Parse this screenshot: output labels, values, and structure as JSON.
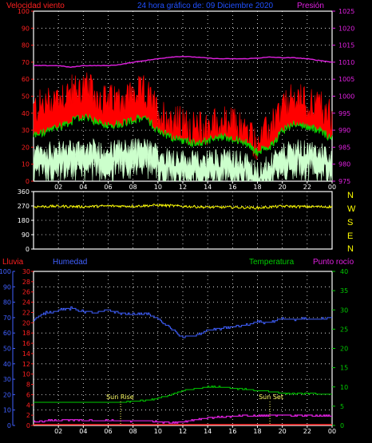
{
  "header": {
    "wind_label": "Velocidad viento",
    "title": "24 hora gráfico de: 09 Diciembre 2020",
    "pressure_label": "Presión"
  },
  "colors": {
    "background": "#000000",
    "grid": "#ffffff",
    "wind_avg": "#00dd00",
    "wind_gust": "#ff0000",
    "wind_min": "#ccffcc",
    "pressure": "#e020e0",
    "direction": "#ffff00",
    "rain": "#ff2020",
    "humidity": "#4060ff",
    "temperature": "#00cc00",
    "dewpoint": "#e020e0",
    "sun": "#ffff66"
  },
  "direction_labels": [
    "N",
    "W",
    "S",
    "E",
    "N"
  ],
  "lower_labels": {
    "rain": "Lluvia",
    "humidity": "Humedad",
    "temperature": "Temperatura",
    "dewpoint": "Punto rocío"
  },
  "sun_labels": {
    "rise": "Sun Rise",
    "set": "Sun Set"
  },
  "x_ticks": [
    "02",
    "04",
    "06",
    "08",
    "10",
    "12",
    "14",
    "16",
    "18",
    "20",
    "22",
    "00"
  ],
  "chart_data": [
    {
      "type": "line",
      "title": "24 hora gráfico de: 09 Diciembre 2020",
      "x_unit": "hours",
      "x_range": [
        0,
        24
      ],
      "y_left": {
        "label": "Velocidad viento",
        "range": [
          0,
          100
        ],
        "ticks": [
          0,
          10,
          20,
          30,
          40,
          50,
          60,
          70,
          80,
          90,
          100
        ]
      },
      "y_right": {
        "label": "Presión",
        "range": [
          975,
          1025
        ],
        "ticks": [
          975,
          980,
          985,
          990,
          995,
          1000,
          1005,
          1010,
          1015,
          1020,
          1025
        ]
      },
      "series": [
        {
          "key": "gust",
          "axis": "left",
          "x": [
            0,
            1,
            2,
            3,
            4,
            5,
            6,
            7,
            8,
            9,
            10,
            11,
            12,
            13,
            14,
            15,
            16,
            17,
            18,
            19,
            20,
            21,
            22,
            23,
            24
          ],
          "values": [
            42,
            45,
            50,
            52,
            55,
            50,
            46,
            48,
            50,
            52,
            40,
            36,
            33,
            30,
            32,
            34,
            33,
            30,
            22,
            30,
            42,
            48,
            46,
            44,
            38
          ]
        },
        {
          "key": "avg",
          "axis": "left",
          "x": [
            0,
            1,
            2,
            3,
            4,
            5,
            6,
            7,
            8,
            9,
            10,
            11,
            12,
            13,
            14,
            15,
            16,
            17,
            18,
            19,
            20,
            21,
            22,
            23,
            24
          ],
          "values": [
            27,
            29,
            32,
            35,
            38,
            35,
            33,
            34,
            36,
            37,
            30,
            26,
            24,
            22,
            24,
            26,
            25,
            23,
            17,
            20,
            30,
            34,
            32,
            30,
            25
          ]
        },
        {
          "key": "min",
          "axis": "left",
          "x": [
            0,
            1,
            2,
            3,
            4,
            5,
            6,
            7,
            8,
            9,
            10,
            11,
            12,
            13,
            14,
            15,
            16,
            17,
            18,
            19,
            20,
            21,
            22,
            23,
            24
          ],
          "values": [
            16,
            17,
            18,
            19,
            20,
            19,
            18,
            19,
            20,
            20,
            16,
            14,
            13,
            12,
            13,
            14,
            13,
            12,
            6,
            10,
            16,
            19,
            18,
            17,
            15
          ]
        },
        {
          "key": "pressure",
          "axis": "right",
          "x": [
            0,
            1,
            2,
            3,
            4,
            5,
            6,
            7,
            8,
            9,
            10,
            11,
            12,
            13,
            14,
            15,
            16,
            17,
            18,
            19,
            20,
            21,
            22,
            23,
            24
          ],
          "values": [
            1009,
            1009,
            1009,
            1008.5,
            1009,
            1009,
            1009,
            1009.3,
            1010,
            1010.5,
            1011,
            1011.5,
            1011.7,
            1011.5,
            1011.2,
            1011,
            1011,
            1011,
            1011.2,
            1011.5,
            1011.3,
            1011.3,
            1011,
            1010.5,
            1010
          ]
        }
      ]
    },
    {
      "type": "line",
      "x_range": [
        0,
        24
      ],
      "y_left": {
        "range": [
          0,
          360
        ],
        "ticks": [
          0,
          90,
          180,
          270,
          360
        ]
      },
      "series": [
        {
          "key": "direction",
          "x": [
            0,
            2,
            4,
            6,
            8,
            10,
            12,
            14,
            16,
            18,
            20,
            22,
            24
          ],
          "values": [
            265,
            268,
            265,
            270,
            268,
            275,
            268,
            262,
            262,
            258,
            268,
            265,
            265
          ]
        }
      ]
    },
    {
      "type": "line",
      "x_range": [
        0,
        24
      ],
      "y_hum": {
        "label": "Humedad",
        "range": [
          0,
          100
        ],
        "ticks": [
          0,
          10,
          20,
          30,
          40,
          50,
          60,
          70,
          80,
          90,
          100
        ]
      },
      "y_rain": {
        "label": "Lluvia",
        "range": [
          0,
          30
        ],
        "ticks": [
          0,
          2,
          4,
          6,
          8,
          10,
          12,
          14,
          16,
          18,
          20,
          22,
          24,
          26,
          28,
          30
        ]
      },
      "y_temp": {
        "label": "Temperatura",
        "range": [
          0,
          40
        ],
        "ticks": [
          0,
          5,
          10,
          15,
          20,
          25,
          30,
          35,
          40
        ]
      },
      "series": [
        {
          "key": "humidity",
          "axis": "hum",
          "x": [
            0,
            1,
            2,
            3,
            4,
            5,
            6,
            7,
            8,
            9,
            10,
            11,
            12,
            13,
            14,
            15,
            16,
            17,
            18,
            19,
            20,
            21,
            22,
            23,
            24
          ],
          "values": [
            69,
            73,
            75,
            76,
            74,
            73,
            75,
            73,
            72,
            73,
            69,
            63,
            57,
            58,
            62,
            63,
            64,
            65,
            67,
            67,
            69,
            69,
            69,
            69,
            70
          ]
        },
        {
          "key": "rain",
          "axis": "rain",
          "x": [
            0,
            24
          ],
          "values": [
            0,
            0
          ]
        },
        {
          "key": "temperature",
          "axis": "temp",
          "x": [
            0,
            1,
            2,
            3,
            4,
            5,
            6,
            7,
            8,
            9,
            10,
            11,
            12,
            13,
            14,
            15,
            16,
            17,
            18,
            19,
            20,
            21,
            22,
            23,
            24
          ],
          "values": [
            6,
            6,
            6,
            6,
            6,
            6,
            6,
            6,
            6.2,
            6.5,
            7,
            8,
            9,
            9.5,
            10,
            10,
            9.6,
            9.4,
            9,
            8.8,
            8.4,
            8.2,
            8.3,
            8.1,
            8
          ]
        },
        {
          "key": "dewpoint",
          "axis": "temp",
          "x": [
            0,
            1,
            2,
            3,
            4,
            5,
            6,
            7,
            8,
            9,
            10,
            11,
            12,
            13,
            14,
            15,
            16,
            17,
            18,
            19,
            20,
            21,
            22,
            23,
            24
          ],
          "values": [
            1,
            1.2,
            1.3,
            1.4,
            1.3,
            1.2,
            1.3,
            1.2,
            1.1,
            1.2,
            1,
            0.7,
            1,
            1.5,
            2,
            2.2,
            2.4,
            2.5,
            2.5,
            2.6,
            2.7,
            2.6,
            2.6,
            2.5,
            2.5
          ]
        }
      ],
      "sun_rise_hour": 7,
      "sun_set_hour": 19
    }
  ]
}
